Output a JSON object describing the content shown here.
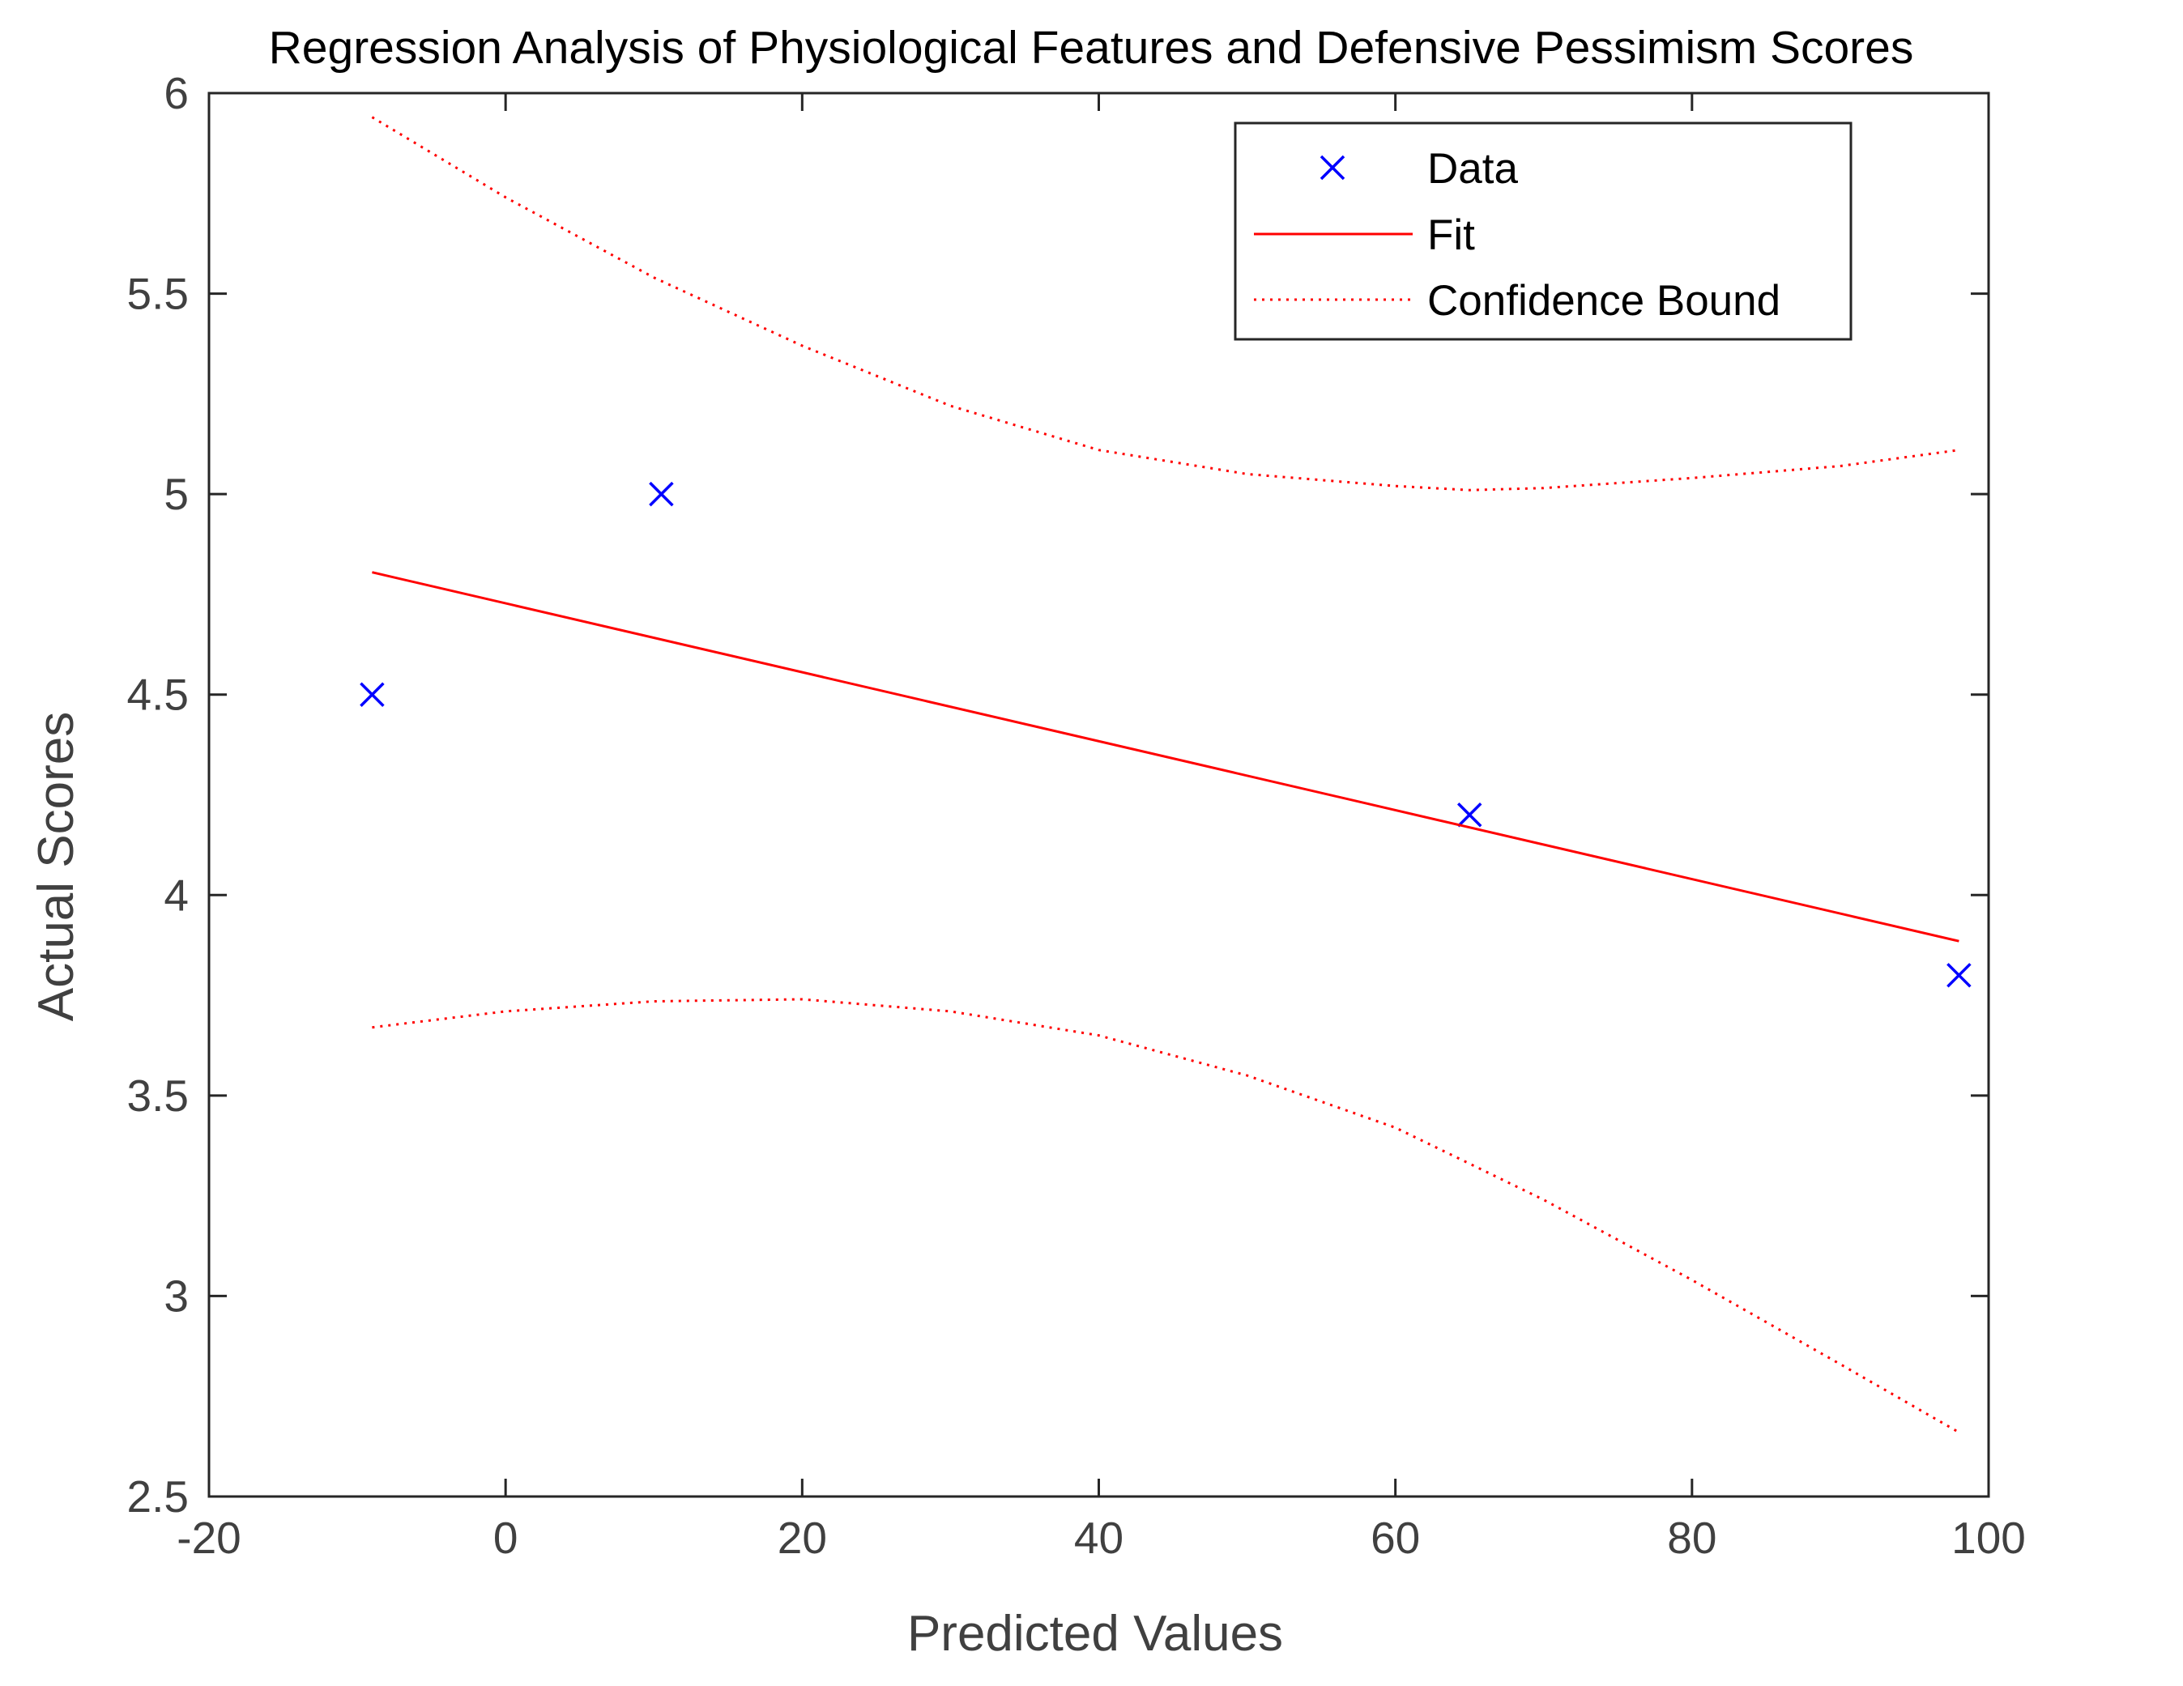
{
  "chart_data": {
    "type": "scatter",
    "title": "Regression Analysis of Physiological Features and Defensive Pessimism Scores",
    "xlabel": "Predicted Values",
    "ylabel": "Actual Scores",
    "xlim": [
      -20,
      100
    ],
    "ylim": [
      2.5,
      6
    ],
    "xticks": [
      -20,
      0,
      20,
      40,
      60,
      80,
      100
    ],
    "yticks": [
      2.5,
      3,
      3.5,
      4,
      4.5,
      5,
      5.5,
      6
    ],
    "grid": false,
    "legend_position": "top-right",
    "series": [
      {
        "name": "Data",
        "kind": "markers",
        "marker": "x",
        "color": "#0000ff",
        "x": [
          -9,
          10.5,
          65,
          98
        ],
        "y": [
          4.5,
          5.0,
          4.2,
          3.8
        ]
      },
      {
        "name": "Fit",
        "kind": "line",
        "style": "solid",
        "color": "#ff0000",
        "x": [
          -9,
          98
        ],
        "y": [
          4.805,
          3.885
        ]
      },
      {
        "name": "Confidence Bound",
        "kind": "line",
        "style": "dotted",
        "color": "#ff0000",
        "x": [
          -9,
          0,
          10,
          20,
          30,
          40,
          50,
          60,
          65,
          70,
          80,
          90,
          98
        ],
        "y": [
          5.94,
          5.74,
          5.54,
          5.37,
          5.22,
          5.11,
          5.05,
          5.02,
          5.01,
          5.015,
          5.04,
          5.07,
          5.11
        ]
      },
      {
        "name": "Confidence Bound (lower)",
        "kind": "line",
        "style": "dotted",
        "color": "#ff0000",
        "x": [
          -9,
          0,
          10,
          20,
          30,
          40,
          50,
          60,
          65,
          70,
          80,
          90,
          98
        ],
        "y": [
          3.67,
          3.71,
          3.735,
          3.74,
          3.71,
          3.65,
          3.55,
          3.42,
          3.33,
          3.24,
          3.04,
          2.83,
          2.66
        ]
      }
    ],
    "legend_entries": [
      "Data",
      "Fit",
      "Confidence Bound"
    ]
  }
}
